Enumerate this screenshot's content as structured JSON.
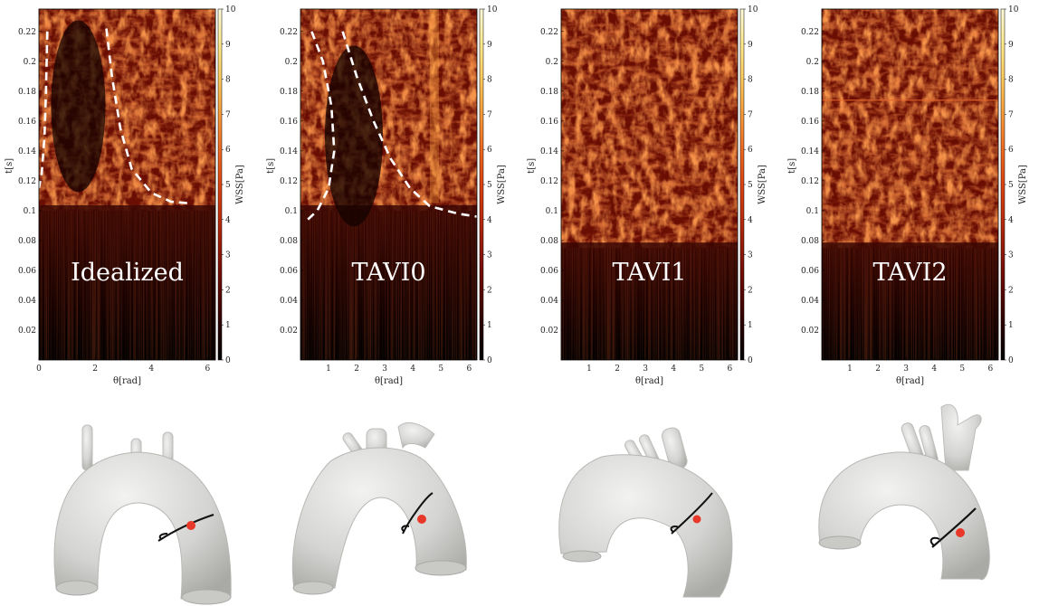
{
  "colors": {
    "colormap": [
      "#000000",
      "#2a0000",
      "#5c0602",
      "#8c1606",
      "#bb2b0c",
      "#dc4414",
      "#ee6a22",
      "#f69a3a",
      "#fbc85c",
      "#fde98c",
      "#fffad8"
    ],
    "dashed_line": "#ffffff",
    "probe_point": "#e8382a",
    "aorta": "#d4d4d2"
  },
  "chart_data": [
    {
      "type": "heatmap",
      "label": "Idealized",
      "xlabel": "θ[rad]",
      "ylabel": "t[s]",
      "colorbar_label": "WSS[Pa]",
      "xlim": [
        0,
        6.28
      ],
      "ylim": [
        0,
        0.235
      ],
      "xticks": [
        "0",
        "2",
        "4",
        "6"
      ],
      "xtick_values": [
        0,
        2,
        4,
        6
      ],
      "yticks": [
        "0.02",
        "0.04",
        "0.06",
        "0.08",
        "0.1",
        "0.12",
        "0.14",
        "0.16",
        "0.18",
        "0.2",
        "0.22"
      ],
      "ytick_values": [
        0.02,
        0.04,
        0.06,
        0.08,
        0.1,
        0.12,
        0.14,
        0.16,
        0.18,
        0.2,
        0.22
      ],
      "colorbar_range": [
        0,
        10
      ],
      "colorbar_ticks": [
        "0",
        "1",
        "2",
        "3",
        "4",
        "5",
        "6",
        "7",
        "8",
        "9",
        "10"
      ],
      "dashed_curves": [
        [
          [
            0.3,
            0.22
          ],
          [
            0.25,
            0.18
          ],
          [
            0.2,
            0.15
          ],
          [
            0.1,
            0.125
          ],
          [
            0.0,
            0.115
          ]
        ],
        [
          [
            2.4,
            0.222
          ],
          [
            2.6,
            0.19
          ],
          [
            2.9,
            0.155
          ],
          [
            3.3,
            0.128
          ],
          [
            4.0,
            0.112
          ],
          [
            4.7,
            0.106
          ],
          [
            5.3,
            0.105
          ]
        ]
      ]
    },
    {
      "type": "heatmap",
      "label": "TAVI0",
      "xlabel": "θ[rad]",
      "ylabel": "t[s]",
      "colorbar_label": "WSS[Pa]",
      "xlim": [
        0,
        6.28
      ],
      "ylim": [
        0,
        0.235
      ],
      "xticks": [
        "1",
        "2",
        "3",
        "4",
        "5",
        "6"
      ],
      "xtick_values": [
        1,
        2,
        3,
        4,
        5,
        6
      ],
      "yticks": [
        "0.02",
        "0.04",
        "0.06",
        "0.08",
        "0.1",
        "0.12",
        "0.14",
        "0.16",
        "0.18",
        "0.2",
        "0.22"
      ],
      "ytick_values": [
        0.02,
        0.04,
        0.06,
        0.08,
        0.1,
        0.12,
        0.14,
        0.16,
        0.18,
        0.2,
        0.22
      ],
      "colorbar_range": [
        0,
        10
      ],
      "colorbar_ticks": [
        "0",
        "1",
        "2",
        "3",
        "4",
        "5",
        "6",
        "7",
        "8",
        "9",
        "10"
      ],
      "dashed_curves": [
        [
          [
            0.4,
            0.22
          ],
          [
            0.8,
            0.2
          ],
          [
            1.1,
            0.17
          ],
          [
            1.2,
            0.14
          ],
          [
            1.0,
            0.115
          ],
          [
            0.6,
            0.1
          ],
          [
            0.2,
            0.093
          ]
        ],
        [
          [
            1.5,
            0.22
          ],
          [
            2.0,
            0.19
          ],
          [
            2.6,
            0.16
          ],
          [
            3.2,
            0.135
          ],
          [
            3.9,
            0.115
          ],
          [
            4.6,
            0.103
          ],
          [
            5.6,
            0.098
          ],
          [
            6.28,
            0.096
          ]
        ]
      ]
    },
    {
      "type": "heatmap",
      "label": "TAVI1",
      "xlabel": "θ[rad]",
      "ylabel": "t[s]",
      "colorbar_label": "WSS[Pa]",
      "xlim": [
        0,
        6.28
      ],
      "ylim": [
        0,
        0.235
      ],
      "xticks": [
        "1",
        "2",
        "3",
        "4",
        "5",
        "6"
      ],
      "xtick_values": [
        1,
        2,
        3,
        4,
        5,
        6
      ],
      "yticks": [
        "0.02",
        "0.04",
        "0.06",
        "0.08",
        "0.1",
        "0.12",
        "0.14",
        "0.16",
        "0.18",
        "0.2",
        "0.22"
      ],
      "ytick_values": [
        0.02,
        0.04,
        0.06,
        0.08,
        0.1,
        0.12,
        0.14,
        0.16,
        0.18,
        0.2,
        0.22
      ],
      "colorbar_range": [
        0,
        10
      ],
      "colorbar_ticks": [
        "0",
        "1",
        "2",
        "3",
        "4",
        "5",
        "6",
        "7",
        "8",
        "9",
        "10"
      ],
      "dashed_curves": []
    },
    {
      "type": "heatmap",
      "label": "TAVI2",
      "xlabel": "θ[rad]",
      "ylabel": "t[s]",
      "colorbar_label": "WSS[Pa]",
      "xlim": [
        0,
        6.28
      ],
      "ylim": [
        0,
        0.235
      ],
      "xticks": [
        "1",
        "2",
        "3",
        "4",
        "5",
        "6"
      ],
      "xtick_values": [
        1,
        2,
        3,
        4,
        5,
        6
      ],
      "yticks": [
        "0.02",
        "0.04",
        "0.06",
        "0.08",
        "0.1",
        "0.12",
        "0.14",
        "0.16",
        "0.18",
        "0.2",
        "0.22"
      ],
      "ytick_values": [
        0.02,
        0.04,
        0.06,
        0.08,
        0.1,
        0.12,
        0.14,
        0.16,
        0.18,
        0.2,
        0.22
      ],
      "colorbar_range": [
        0,
        10
      ],
      "colorbar_ticks": [
        "0",
        "1",
        "2",
        "3",
        "4",
        "5",
        "6",
        "7",
        "8",
        "9",
        "10"
      ],
      "dashed_curves": []
    }
  ]
}
